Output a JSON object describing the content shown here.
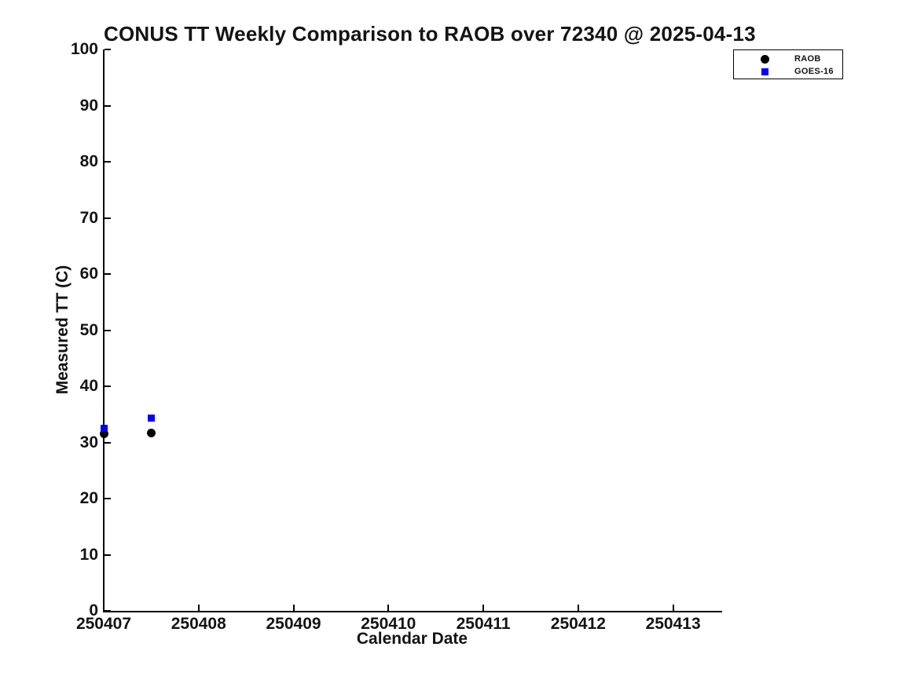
{
  "chart_data": {
    "type": "scatter",
    "title": "CONUS TT Weekly Comparison to RAOB over 72340 @ 2025-04-13",
    "xlabel": "Calendar Date",
    "ylabel": "Measured TT (C)",
    "xlim": [
      250407,
      250413.5
    ],
    "ylim": [
      0,
      100
    ],
    "xticks": [
      250407,
      250408,
      250409,
      250410,
      250411,
      250412,
      250413
    ],
    "yticks": [
      0,
      10,
      20,
      30,
      40,
      50,
      60,
      70,
      80,
      90,
      100
    ],
    "grid": false,
    "legend_position": "top-right-outside",
    "background_color": "#ffffff",
    "axis_color": "#000000",
    "series": [
      {
        "name": "RAOB",
        "marker": "circle",
        "color": "#000000",
        "marker_size": 11,
        "points": [
          {
            "x": 250407.0,
            "y": 31.6
          },
          {
            "x": 250407.5,
            "y": 31.7
          }
        ]
      },
      {
        "name": "GOES-16",
        "marker": "square",
        "color": "#0000ff",
        "marker_size": 9,
        "points": [
          {
            "x": 250407.0,
            "y": 32.5
          },
          {
            "x": 250407.5,
            "y": 34.4
          }
        ]
      }
    ]
  }
}
